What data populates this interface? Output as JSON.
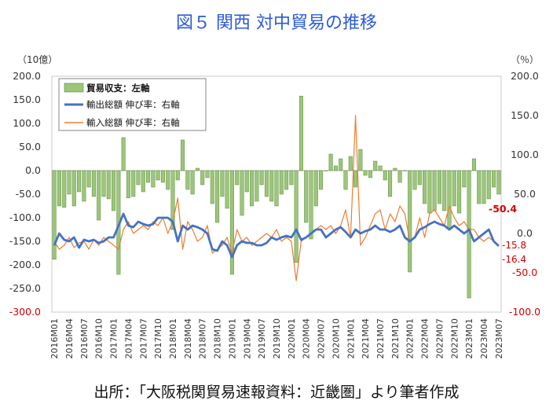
{
  "chart_data": {
    "type": "bar+line",
    "title": "図５ 関西 対中貿易の推移",
    "y_left_unit": "（10億）",
    "y_right_unit": "（％）",
    "y_left_range": [
      -300,
      200
    ],
    "y_right_range": [
      -100,
      200
    ],
    "y_left_ticks": [
      "200.0",
      "150.0",
      "100.0",
      "50.0",
      "0.0",
      "-50.0",
      "-100.0",
      "-150.0",
      "-200.0",
      "-250.0",
      "-300.0"
    ],
    "y_right_ticks": [
      "200.0",
      "150.0",
      "100.0",
      "50.0",
      "0.0",
      "-50.0",
      "-100.0"
    ],
    "x_tick_labels": [
      "2016M01",
      "2016M04",
      "2016M07",
      "2016M10",
      "2017M01",
      "2017M04",
      "2017M07",
      "2017M10",
      "2018M01",
      "2018M04",
      "2018M07",
      "2018M10",
      "2019M01",
      "2019M04",
      "2019M07",
      "2019M10",
      "2020M01",
      "2020M04",
      "2020M07",
      "2020M10",
      "2021M01",
      "2021M04",
      "2021M07",
      "2021M10",
      "2022M01",
      "2022M04",
      "2022M07",
      "2022M10",
      "2023M01",
      "2023M04",
      "2023M07"
    ],
    "categories": [
      "2016M01",
      "2016M02",
      "2016M03",
      "2016M04",
      "2016M05",
      "2016M06",
      "2016M07",
      "2016M08",
      "2016M09",
      "2016M10",
      "2016M11",
      "2016M12",
      "2017M01",
      "2017M02",
      "2017M03",
      "2017M04",
      "2017M05",
      "2017M06",
      "2017M07",
      "2017M08",
      "2017M09",
      "2017M10",
      "2017M11",
      "2017M12",
      "2018M01",
      "2018M02",
      "2018M03",
      "2018M04",
      "2018M05",
      "2018M06",
      "2018M07",
      "2018M08",
      "2018M09",
      "2018M10",
      "2018M11",
      "2018M12",
      "2019M01",
      "2019M02",
      "2019M03",
      "2019M04",
      "2019M05",
      "2019M06",
      "2019M07",
      "2019M08",
      "2019M09",
      "2019M10",
      "2019M11",
      "2019M12",
      "2020M01",
      "2020M02",
      "2020M03",
      "2020M04",
      "2020M05",
      "2020M06",
      "2020M07",
      "2020M08",
      "2020M09",
      "2020M10",
      "2020M11",
      "2020M12",
      "2021M01",
      "2021M02",
      "2021M03",
      "2021M04",
      "2021M05",
      "2021M06",
      "2021M07",
      "2021M08",
      "2021M09",
      "2021M10",
      "2021M11",
      "2021M12",
      "2022M01",
      "2022M02",
      "2022M03",
      "2022M04",
      "2022M05",
      "2022M06",
      "2022M07",
      "2022M08",
      "2022M09",
      "2022M10",
      "2022M11",
      "2022M12",
      "2023M01",
      "2023M02",
      "2023M03",
      "2023M04",
      "2023M05",
      "2023M06",
      "2023M07"
    ],
    "series": [
      {
        "name": "貿易収支：左軸",
        "type": "bar",
        "axis": "left",
        "color": "#9dc67a",
        "values": [
          -188,
          -75,
          -78,
          -50,
          -75,
          -45,
          -65,
          -35,
          -55,
          -105,
          -55,
          -60,
          -85,
          -220,
          70,
          -58,
          -55,
          -30,
          -45,
          -25,
          -35,
          -20,
          -25,
          -40,
          -125,
          -20,
          65,
          -40,
          -50,
          5,
          -30,
          -15,
          -70,
          -110,
          -55,
          -80,
          -220,
          -30,
          -95,
          -45,
          -75,
          -65,
          -30,
          -55,
          -65,
          -75,
          -50,
          -40,
          -30,
          -195,
          158,
          -110,
          -145,
          -75,
          -40,
          0,
          35,
          10,
          25,
          -40,
          30,
          -35,
          45,
          -10,
          -15,
          20,
          10,
          -20,
          -55,
          5,
          -25,
          0,
          -215,
          -40,
          -30,
          -70,
          -90,
          -85,
          -70,
          -85,
          -125,
          -75,
          -90,
          -35,
          -270,
          25,
          -70,
          -70,
          -60,
          -35,
          -50
        ]
      },
      {
        "name": "輸出総額 伸び率：右軸",
        "type": "line",
        "axis": "right",
        "color": "#4472c4",
        "values": [
          -15,
          0,
          -8,
          -10,
          -5,
          -18,
          -8,
          -10,
          -8,
          -12,
          -10,
          -5,
          -5,
          10,
          25,
          10,
          8,
          15,
          12,
          10,
          12,
          20,
          20,
          20,
          15,
          -10,
          10,
          5,
          10,
          8,
          5,
          0,
          -20,
          -22,
          -10,
          -15,
          -30,
          -15,
          -10,
          -12,
          -12,
          -15,
          -15,
          -12,
          -5,
          -8,
          -5,
          -3,
          -5,
          5,
          -8,
          -5,
          0,
          5,
          5,
          -5,
          0,
          5,
          8,
          2,
          -5,
          5,
          0,
          3,
          5,
          10,
          5,
          5,
          2,
          5,
          10,
          -5,
          -10,
          -5,
          5,
          8,
          12,
          15,
          12,
          10,
          5,
          10,
          5,
          0,
          5,
          -10,
          -5,
          0,
          5,
          -10,
          -15.8
        ]
      },
      {
        "name": "輸入総額 伸び率：右軸",
        "type": "line",
        "axis": "right",
        "color": "#ed7d31",
        "values": [
          -10,
          -20,
          -15,
          -5,
          -18,
          -12,
          -10,
          -20,
          -8,
          -15,
          -5,
          -10,
          -15,
          -20,
          5,
          15,
          0,
          5,
          10,
          5,
          15,
          10,
          20,
          0,
          15,
          45,
          -20,
          15,
          5,
          -10,
          -5,
          10,
          -25,
          -20,
          -15,
          -5,
          -25,
          5,
          -10,
          -5,
          -15,
          -10,
          -5,
          0,
          -5,
          5,
          -10,
          -5,
          -10,
          -60,
          -10,
          -5,
          0,
          5,
          10,
          5,
          10,
          0,
          10,
          30,
          -5,
          150,
          -15,
          -5,
          10,
          25,
          30,
          5,
          25,
          15,
          35,
          25,
          -10,
          -5,
          20,
          -5,
          25,
          30,
          20,
          10,
          35,
          20,
          10,
          15,
          5,
          5,
          -5,
          -10,
          -5,
          -10,
          -16.4
        ]
      }
    ],
    "annotations": [
      "-50.4",
      "-15.8",
      "-16.4"
    ],
    "legend": "top-left"
  },
  "source_note": "出所：「大阪税関貿易速報資料：近畿圏」より筆者作成"
}
